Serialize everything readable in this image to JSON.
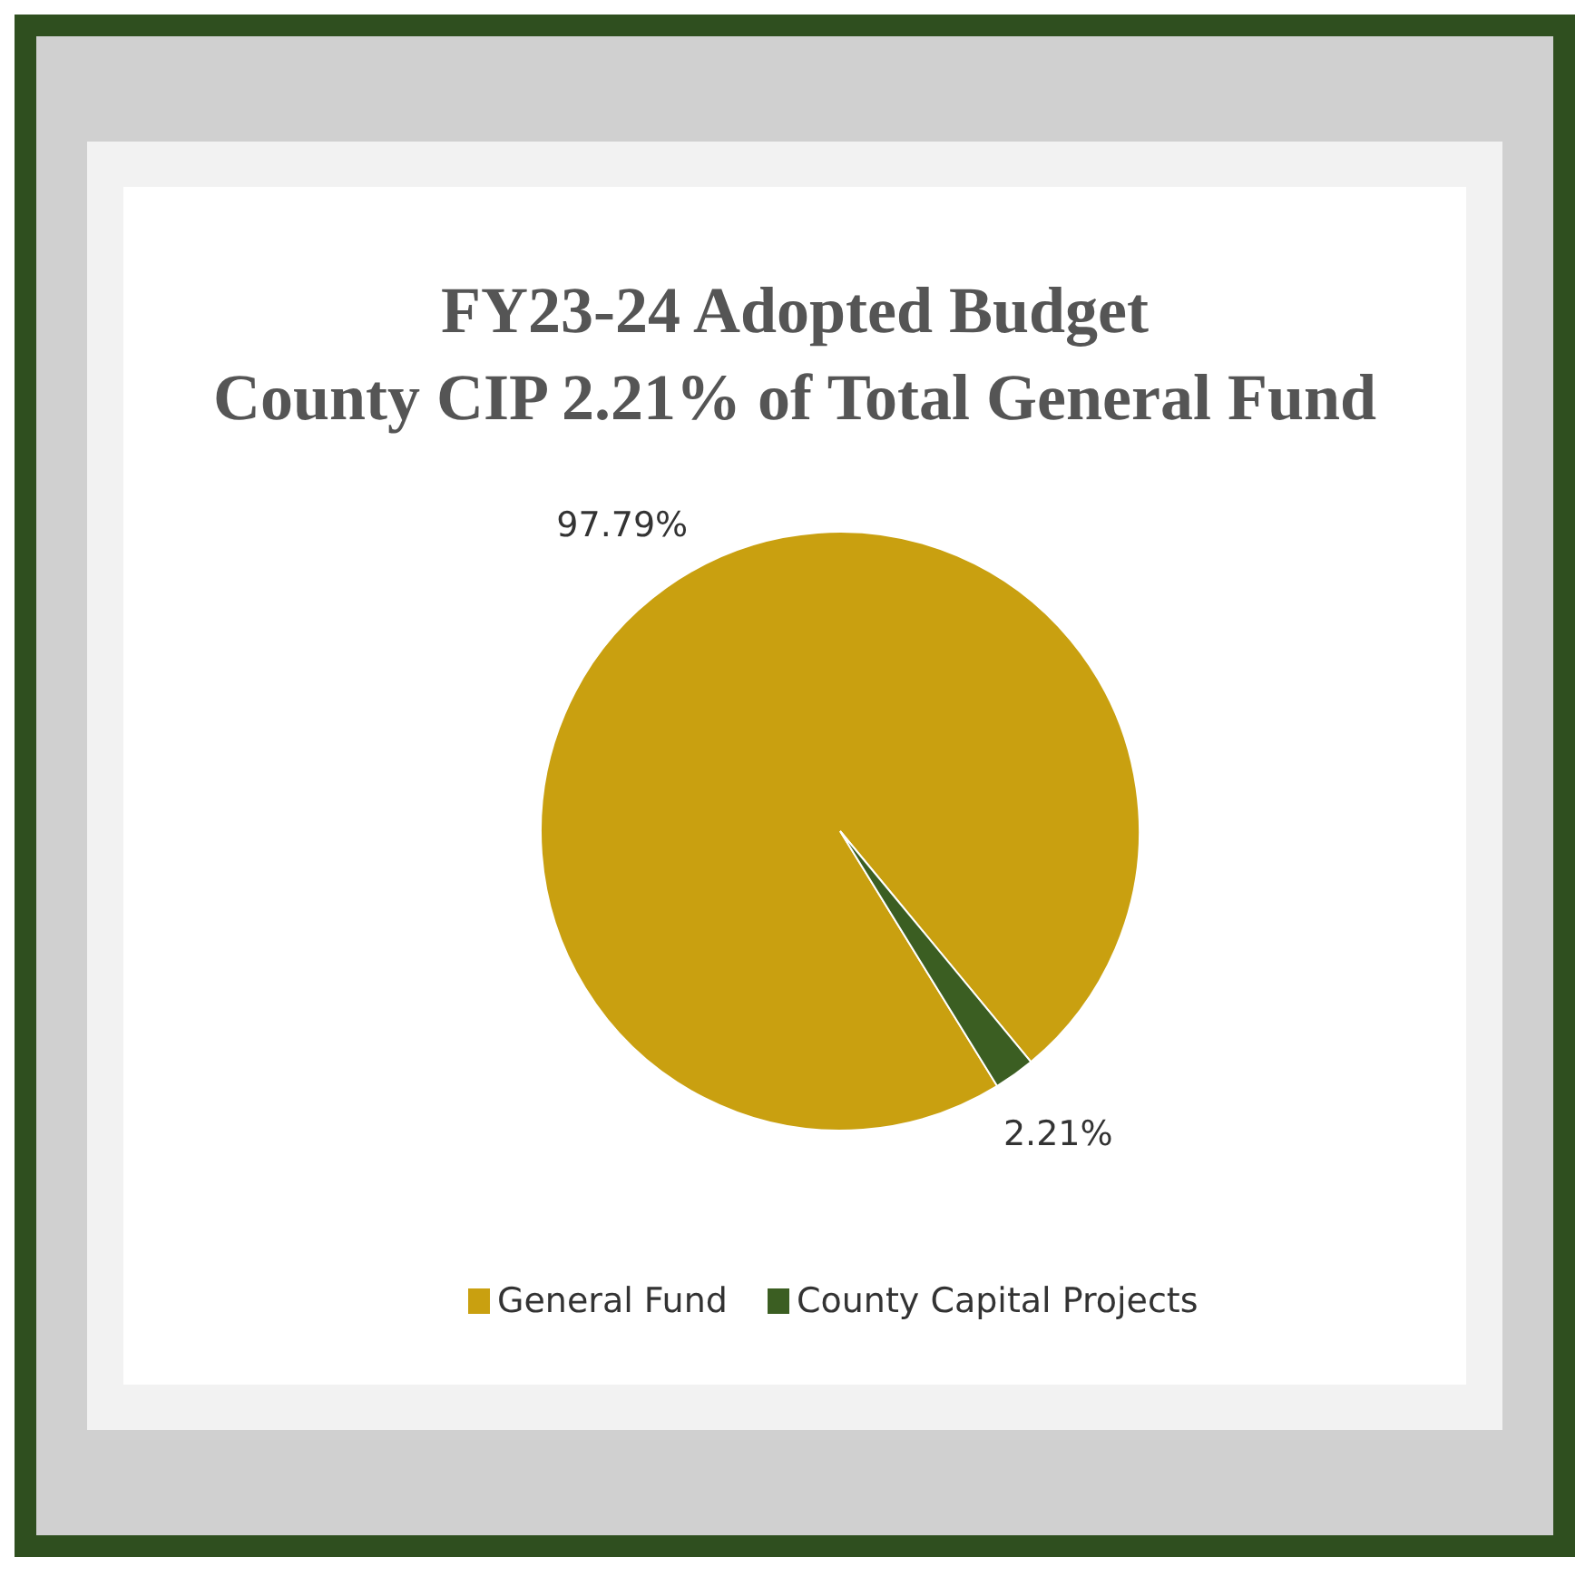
{
  "chart_data": {
    "type": "pie",
    "title": "FY23-24 Adopted Budget\nCounty CIP 2.21% of Total General Fund",
    "categories": [
      "General Fund",
      "County Capital Projects"
    ],
    "values": [
      97.79,
      2.21
    ],
    "colors": [
      "#c9a010",
      "#3b5e22"
    ],
    "value_labels": [
      "97.79%",
      "2.21%"
    ],
    "legend": "bottom"
  }
}
